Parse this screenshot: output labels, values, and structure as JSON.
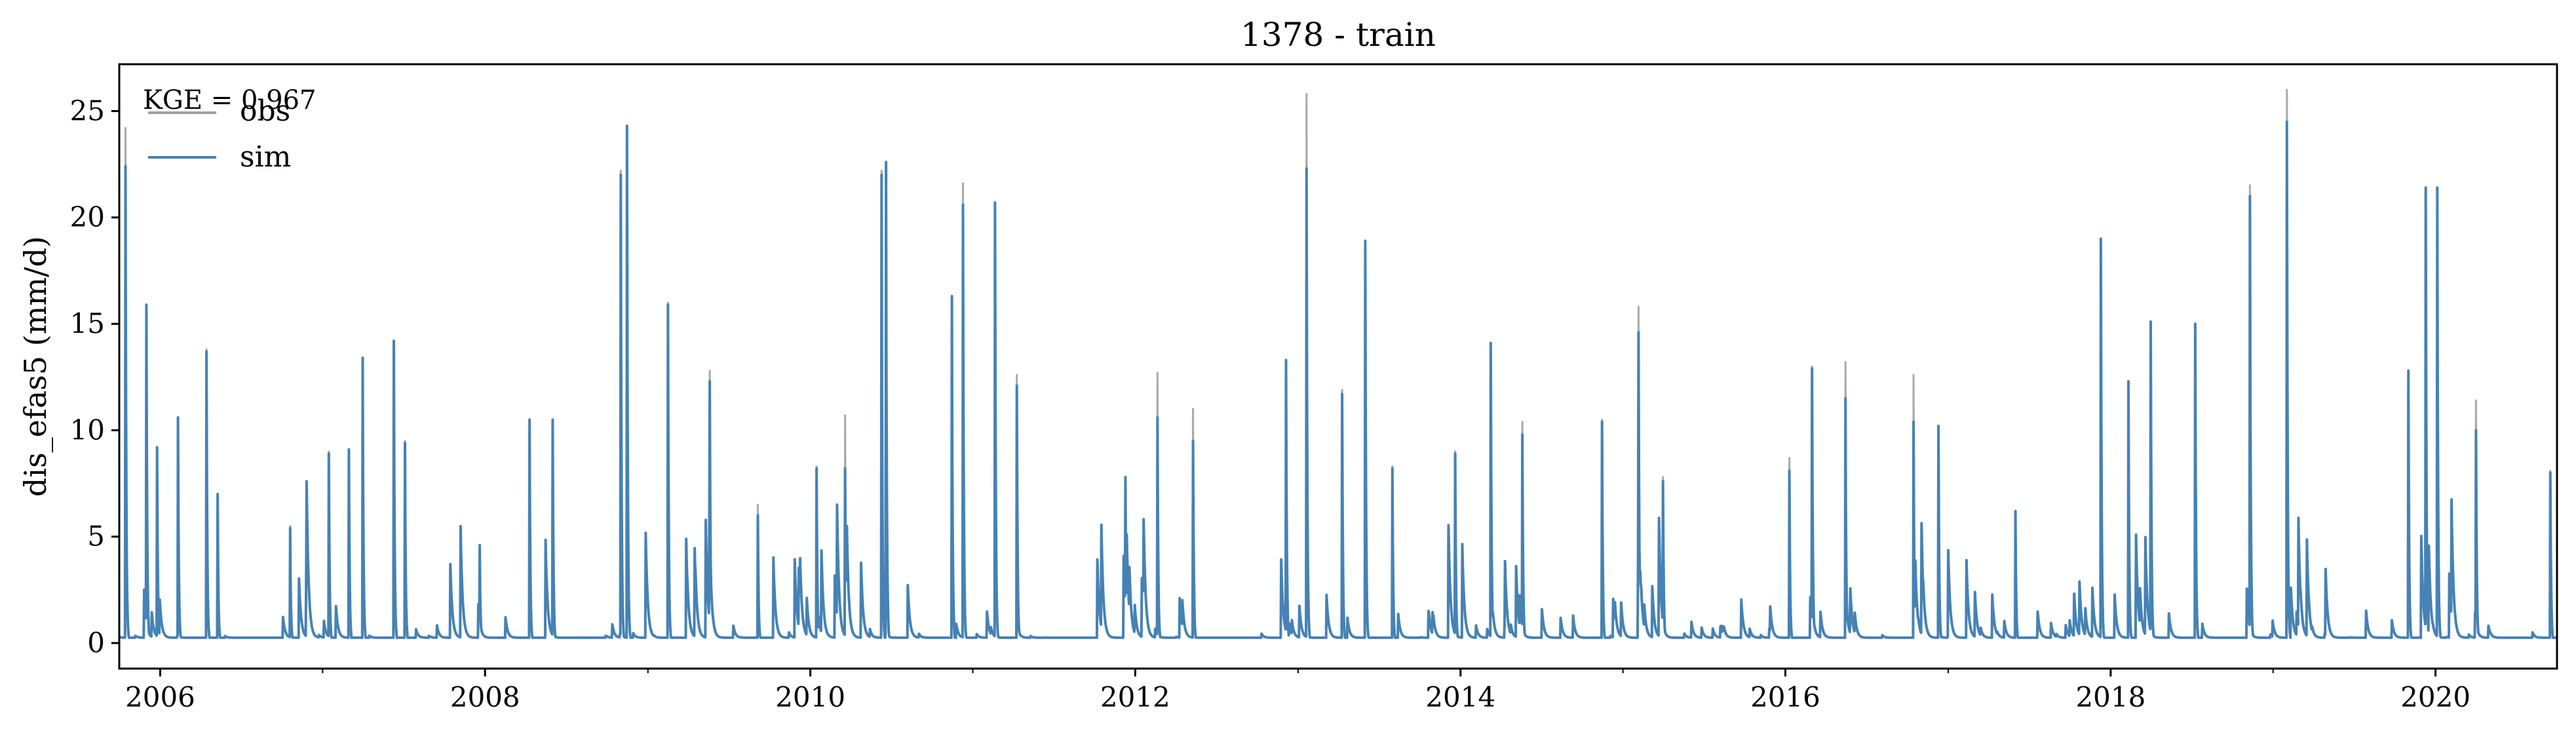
{
  "chart_data": {
    "type": "line",
    "title": "1378 - train",
    "xlabel": "",
    "ylabel": "dis_efas5 (mm/d)",
    "xlim": [
      "2005-10-01",
      "2020-09-30"
    ],
    "ylim": [
      -1.2,
      27.2
    ],
    "x_ticks": [
      "2006",
      "2008",
      "2010",
      "2012",
      "2014",
      "2016",
      "2018",
      "2020"
    ],
    "y_ticks": [
      0,
      5,
      10,
      15,
      20,
      25
    ],
    "grid": false,
    "legend": {
      "position": "top-left"
    },
    "annotation": "KGE = 0.967",
    "series": [
      {
        "name": "obs",
        "color": "#a0a0a0",
        "peaks": [
          [
            "2005-10-15",
            24.2
          ],
          [
            "2005-12-01",
            15.9
          ],
          [
            "2005-12-25",
            9.2
          ],
          [
            "2006-02-10",
            10.6
          ],
          [
            "2006-04-15",
            13.8
          ],
          [
            "2006-05-10",
            7.0
          ],
          [
            "2006-10-20",
            5.5
          ],
          [
            "2007-01-15",
            9.0
          ],
          [
            "2007-03-01",
            9.1
          ],
          [
            "2007-04-01",
            13.4
          ],
          [
            "2007-06-10",
            14.2
          ],
          [
            "2007-07-05",
            9.5
          ],
          [
            "2007-12-20",
            4.6
          ],
          [
            "2008-04-10",
            10.5
          ],
          [
            "2008-06-01",
            10.5
          ],
          [
            "2008-11-01",
            22.2
          ],
          [
            "2008-11-15",
            24.3
          ],
          [
            "2009-02-15",
            16.0
          ],
          [
            "2009-05-20",
            12.8
          ],
          [
            "2009-09-05",
            6.5
          ],
          [
            "2010-01-15",
            8.3
          ],
          [
            "2010-03-20",
            10.7
          ],
          [
            "2010-06-10",
            22.2
          ],
          [
            "2010-06-20",
            22.6
          ],
          [
            "2010-11-15",
            16.3
          ],
          [
            "2010-12-10",
            21.6
          ],
          [
            "2011-02-20",
            20.7
          ],
          [
            "2011-04-10",
            12.6
          ],
          [
            "2011-12-10",
            7.8
          ],
          [
            "2012-02-20",
            12.7
          ],
          [
            "2012-05-10",
            11.0
          ],
          [
            "2012-12-05",
            13.3
          ],
          [
            "2013-01-20",
            25.8
          ],
          [
            "2013-04-10",
            11.9
          ],
          [
            "2013-06-01",
            18.9
          ],
          [
            "2013-08-01",
            8.3
          ],
          [
            "2013-12-20",
            9.0
          ],
          [
            "2014-03-10",
            14.1
          ],
          [
            "2014-05-20",
            10.4
          ],
          [
            "2014-11-15",
            10.5
          ],
          [
            "2015-02-05",
            15.8
          ],
          [
            "2015-04-01",
            7.8
          ],
          [
            "2016-01-10",
            8.7
          ],
          [
            "2016-03-01",
            13.0
          ],
          [
            "2016-05-15",
            13.2
          ],
          [
            "2016-10-15",
            12.6
          ],
          [
            "2016-12-10",
            10.2
          ],
          [
            "2017-06-01",
            6.2
          ],
          [
            "2017-12-10",
            19.0
          ],
          [
            "2018-02-10",
            12.3
          ],
          [
            "2018-04-01",
            15.1
          ],
          [
            "2018-07-10",
            15.0
          ],
          [
            "2018-11-10",
            21.5
          ],
          [
            "2019-02-01",
            26.0
          ],
          [
            "2019-11-01",
            12.8
          ],
          [
            "2019-12-10",
            21.4
          ],
          [
            "2020-01-05",
            21.4
          ],
          [
            "2020-04-01",
            11.4
          ],
          [
            "2020-09-15",
            8.1
          ]
        ]
      },
      {
        "name": "sim",
        "color": "#4682b4",
        "peaks": [
          [
            "2005-10-15",
            22.4
          ],
          [
            "2005-12-01",
            15.9
          ],
          [
            "2005-12-25",
            9.2
          ],
          [
            "2006-02-10",
            10.6
          ],
          [
            "2006-04-15",
            13.7
          ],
          [
            "2006-05-10",
            7.0
          ],
          [
            "2006-10-20",
            5.4
          ],
          [
            "2007-01-15",
            8.9
          ],
          [
            "2007-03-01",
            9.1
          ],
          [
            "2007-04-01",
            13.4
          ],
          [
            "2007-06-10",
            14.2
          ],
          [
            "2007-07-05",
            9.4
          ],
          [
            "2007-12-20",
            4.6
          ],
          [
            "2008-04-10",
            10.5
          ],
          [
            "2008-06-01",
            10.5
          ],
          [
            "2008-11-01",
            22.0
          ],
          [
            "2008-11-15",
            24.3
          ],
          [
            "2009-02-15",
            15.9
          ],
          [
            "2009-05-20",
            12.3
          ],
          [
            "2009-09-05",
            6.0
          ],
          [
            "2010-01-15",
            8.2
          ],
          [
            "2010-03-20",
            8.2
          ],
          [
            "2010-06-10",
            22.0
          ],
          [
            "2010-06-20",
            22.6
          ],
          [
            "2010-11-15",
            16.3
          ],
          [
            "2010-12-10",
            20.6
          ],
          [
            "2011-02-20",
            20.7
          ],
          [
            "2011-04-10",
            12.1
          ],
          [
            "2011-12-10",
            7.8
          ],
          [
            "2012-02-20",
            10.6
          ],
          [
            "2012-05-10",
            9.5
          ],
          [
            "2012-12-05",
            13.3
          ],
          [
            "2013-01-20",
            22.3
          ],
          [
            "2013-04-10",
            11.7
          ],
          [
            "2013-06-01",
            18.9
          ],
          [
            "2013-08-01",
            8.2
          ],
          [
            "2013-12-20",
            8.9
          ],
          [
            "2014-03-10",
            14.1
          ],
          [
            "2014-05-20",
            9.8
          ],
          [
            "2014-11-15",
            10.4
          ],
          [
            "2015-02-05",
            14.6
          ],
          [
            "2015-04-01",
            7.6
          ],
          [
            "2016-01-10",
            8.1
          ],
          [
            "2016-03-01",
            12.9
          ],
          [
            "2016-05-15",
            11.5
          ],
          [
            "2016-10-15",
            10.4
          ],
          [
            "2016-12-10",
            10.2
          ],
          [
            "2017-06-01",
            6.2
          ],
          [
            "2017-12-10",
            19.0
          ],
          [
            "2018-02-10",
            12.3
          ],
          [
            "2018-04-01",
            15.1
          ],
          [
            "2018-07-10",
            15.0
          ],
          [
            "2018-11-10",
            21.0
          ],
          [
            "2019-02-01",
            24.5
          ],
          [
            "2019-11-01",
            12.8
          ],
          [
            "2019-12-10",
            21.4
          ],
          [
            "2020-01-05",
            21.4
          ],
          [
            "2020-04-01",
            10.0
          ],
          [
            "2020-09-15",
            8.0
          ]
        ]
      }
    ]
  }
}
